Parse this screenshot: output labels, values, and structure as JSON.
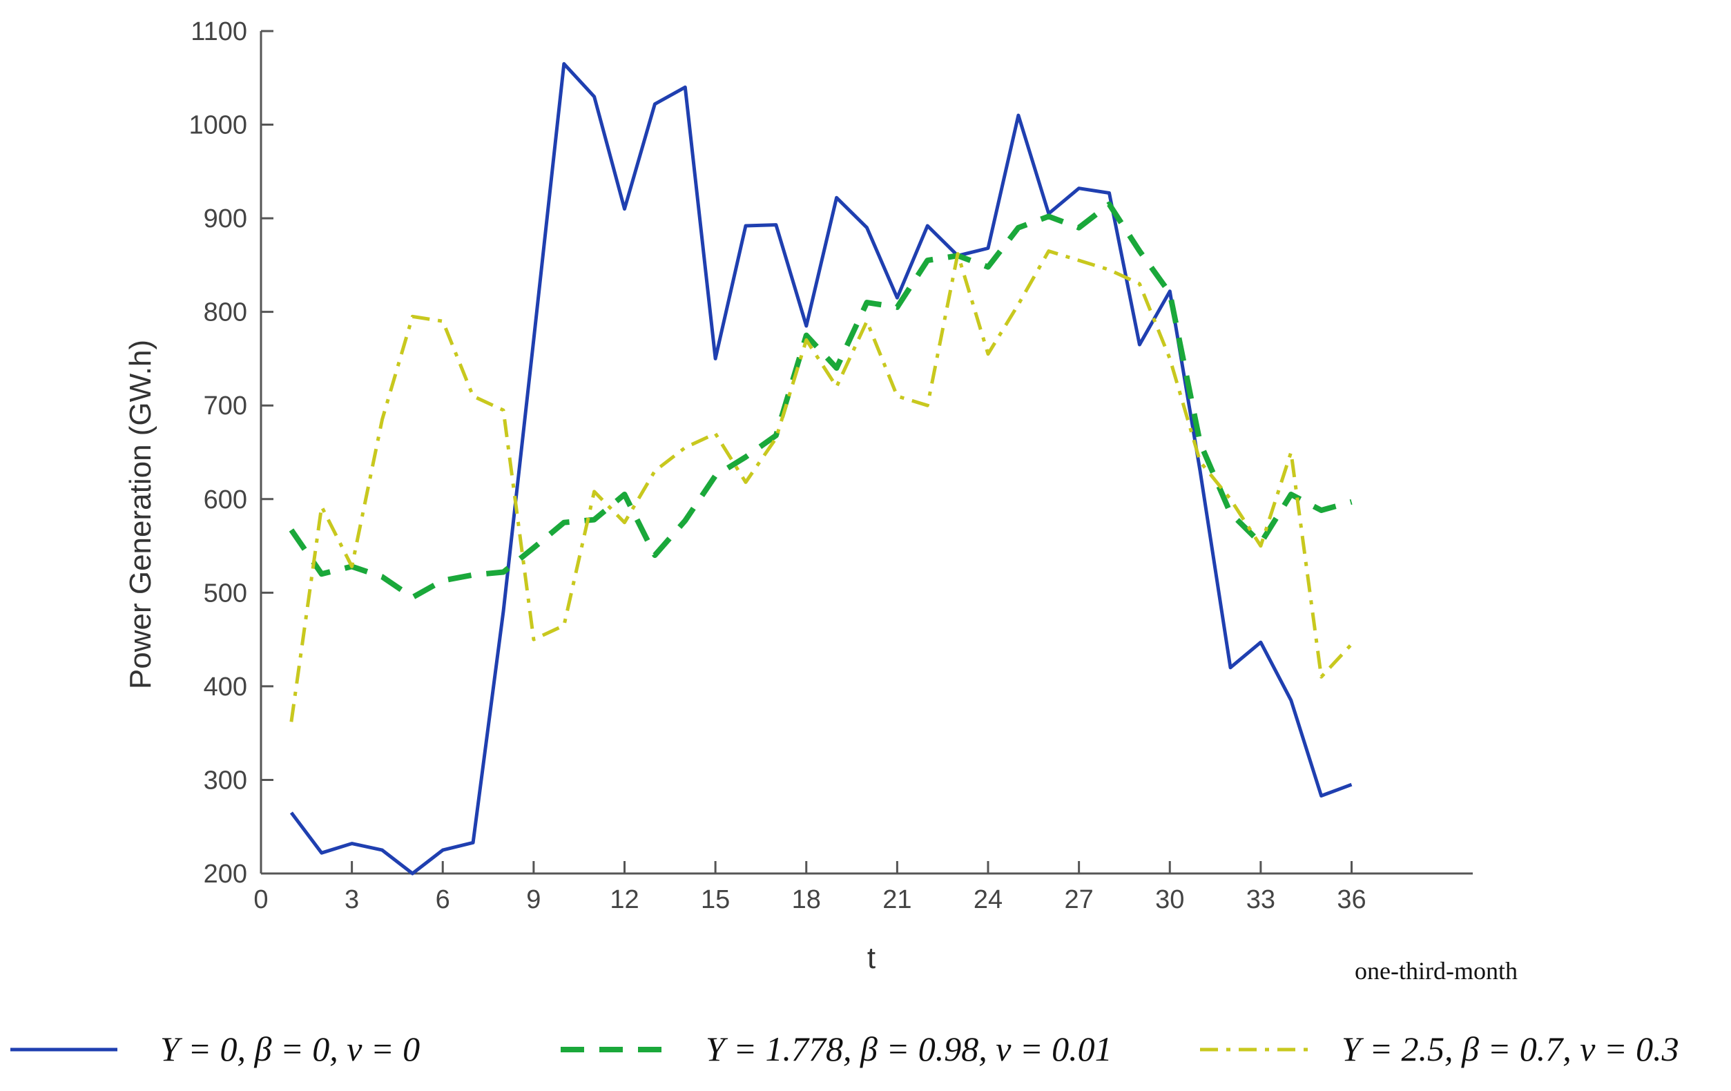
{
  "chart_data": {
    "type": "line",
    "title": "",
    "xlabel": "t",
    "x_unit_label": "one-third-month",
    "ylabel": "Power Generation (GW.h)",
    "xlim": [
      0,
      40
    ],
    "ylim": [
      200,
      1100
    ],
    "x_ticks": [
      0,
      3,
      6,
      9,
      12,
      15,
      18,
      21,
      24,
      27,
      30,
      33,
      36
    ],
    "y_ticks": [
      200,
      300,
      400,
      500,
      600,
      700,
      800,
      900,
      1000,
      1100
    ],
    "grid": false,
    "legend_position": "bottom",
    "x": [
      1,
      2,
      3,
      4,
      5,
      6,
      7,
      8,
      9,
      10,
      11,
      12,
      13,
      14,
      15,
      16,
      17,
      18,
      19,
      20,
      21,
      22,
      23,
      24,
      25,
      26,
      27,
      28,
      29,
      30,
      31,
      32,
      33,
      34,
      35,
      36
    ],
    "series": [
      {
        "name": "Y = 0, β = 0, ν = 0",
        "color": "#1f3fb0",
        "style": "solid",
        "values": [
          265,
          222,
          232,
          225,
          200,
          225,
          233,
          480,
          770,
          1065,
          1030,
          910,
          1022,
          1040,
          750,
          892,
          893,
          785,
          922,
          890,
          815,
          892,
          860,
          868,
          1010,
          905,
          932,
          927,
          765,
          822,
          630,
          420,
          447,
          385,
          283,
          295
        ]
      },
      {
        "name": "Y = 1.778, β = 0.98, ν = 0.01",
        "color": "#1aa83a",
        "style": "dashed",
        "values": [
          567,
          520,
          528,
          517,
          495,
          513,
          519,
          522,
          548,
          575,
          578,
          605,
          540,
          577,
          625,
          645,
          668,
          775,
          740,
          810,
          805,
          855,
          860,
          848,
          890,
          902,
          890,
          915,
          865,
          820,
          660,
          585,
          553,
          605,
          588,
          597
        ]
      },
      {
        "name": "Y = 2.5, β = 0.7, ν = 0.3",
        "color": "#c8c81e",
        "style": "dashdot",
        "values": [
          362,
          592,
          528,
          685,
          795,
          790,
          710,
          695,
          450,
          465,
          608,
          575,
          630,
          655,
          670,
          618,
          665,
          770,
          720,
          790,
          710,
          700,
          862,
          755,
          808,
          865,
          855,
          845,
          830,
          750,
          640,
          600,
          550,
          650,
          410,
          445
        ]
      }
    ]
  }
}
